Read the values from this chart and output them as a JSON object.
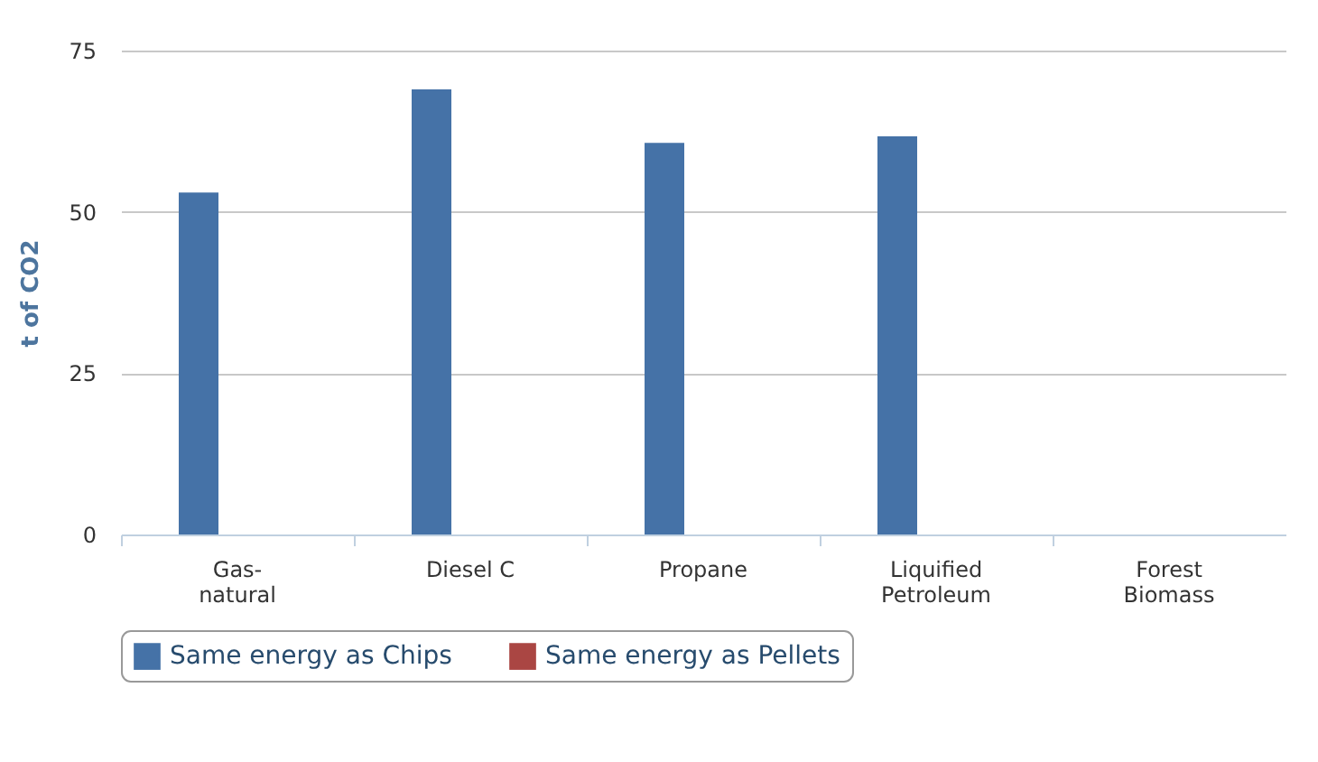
{
  "chart_data": {
    "type": "bar",
    "ylabel": "t of CO2",
    "categories": [
      "Gas-natural",
      "Diesel C",
      "Propane",
      "Liquified Petroleum",
      "Forest Biomass"
    ],
    "series": [
      {
        "name": "Same energy as Chips",
        "color": "#4572a7",
        "values": [
          53,
          69,
          60.7,
          61.7,
          null
        ]
      },
      {
        "name": "Same energy as Pellets",
        "color": "#aa4643",
        "values": [
          null,
          null,
          null,
          null,
          null
        ]
      }
    ],
    "ylim": [
      0,
      75
    ],
    "yticks": [
      0,
      25,
      50,
      75
    ],
    "grid": "y",
    "legend": "bottom"
  }
}
